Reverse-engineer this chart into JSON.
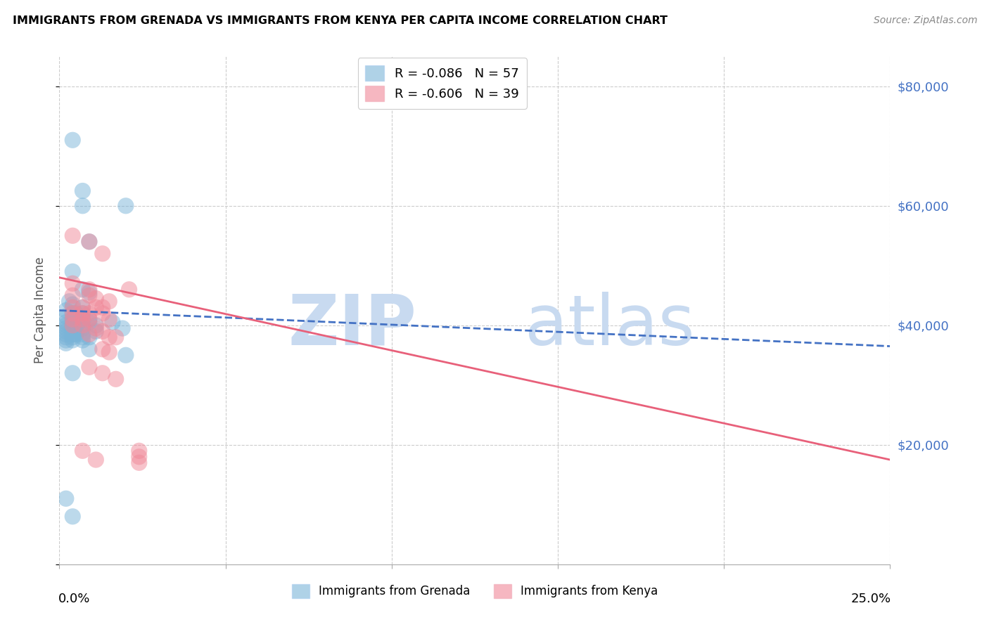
{
  "title": "IMMIGRANTS FROM GRENADA VS IMMIGRANTS FROM KENYA PER CAPITA INCOME CORRELATION CHART",
  "source": "Source: ZipAtlas.com",
  "ylabel": "Per Capita Income",
  "yticks": [
    0,
    20000,
    40000,
    60000,
    80000
  ],
  "xlim": [
    0.0,
    0.25
  ],
  "ylim": [
    0,
    85000
  ],
  "grenada_color": "#7ab4d8",
  "kenya_color": "#f08898",
  "grenada_scatter": [
    [
      0.004,
      71000
    ],
    [
      0.007,
      62500
    ],
    [
      0.007,
      60000
    ],
    [
      0.02,
      60000
    ],
    [
      0.009,
      54000
    ],
    [
      0.004,
      49000
    ],
    [
      0.007,
      46000
    ],
    [
      0.009,
      45500
    ],
    [
      0.003,
      44000
    ],
    [
      0.004,
      43500
    ],
    [
      0.007,
      43000
    ],
    [
      0.002,
      42500
    ],
    [
      0.004,
      42000
    ],
    [
      0.005,
      42000
    ],
    [
      0.007,
      42000
    ],
    [
      0.002,
      41500
    ],
    [
      0.004,
      41000
    ],
    [
      0.005,
      41000
    ],
    [
      0.007,
      41000
    ],
    [
      0.009,
      41000
    ],
    [
      0.002,
      40500
    ],
    [
      0.004,
      40500
    ],
    [
      0.009,
      40500
    ],
    [
      0.002,
      40000
    ],
    [
      0.004,
      40000
    ],
    [
      0.005,
      40000
    ],
    [
      0.007,
      40000
    ],
    [
      0.011,
      40000
    ],
    [
      0.002,
      39500
    ],
    [
      0.004,
      39500
    ],
    [
      0.005,
      39500
    ],
    [
      0.007,
      39500
    ],
    [
      0.002,
      39000
    ],
    [
      0.004,
      39000
    ],
    [
      0.005,
      39000
    ],
    [
      0.011,
      39000
    ],
    [
      0.002,
      38500
    ],
    [
      0.004,
      38500
    ],
    [
      0.005,
      38500
    ],
    [
      0.007,
      38500
    ],
    [
      0.002,
      38000
    ],
    [
      0.004,
      38000
    ],
    [
      0.007,
      38000
    ],
    [
      0.009,
      38000
    ],
    [
      0.002,
      37500
    ],
    [
      0.004,
      37500
    ],
    [
      0.007,
      37500
    ],
    [
      0.002,
      37000
    ],
    [
      0.009,
      36000
    ],
    [
      0.02,
      35000
    ],
    [
      0.004,
      32000
    ],
    [
      0.002,
      11000
    ],
    [
      0.004,
      8000
    ],
    [
      0.016,
      40500
    ],
    [
      0.019,
      39500
    ]
  ],
  "kenya_scatter": [
    [
      0.004,
      55000
    ],
    [
      0.009,
      54000
    ],
    [
      0.013,
      52000
    ],
    [
      0.004,
      47000
    ],
    [
      0.009,
      46000
    ],
    [
      0.004,
      45000
    ],
    [
      0.009,
      45000
    ],
    [
      0.011,
      44500
    ],
    [
      0.015,
      44000
    ],
    [
      0.004,
      43000
    ],
    [
      0.007,
      43000
    ],
    [
      0.011,
      43000
    ],
    [
      0.013,
      43000
    ],
    [
      0.004,
      42000
    ],
    [
      0.007,
      42000
    ],
    [
      0.009,
      42000
    ],
    [
      0.013,
      42000
    ],
    [
      0.004,
      41000
    ],
    [
      0.007,
      41000
    ],
    [
      0.009,
      41000
    ],
    [
      0.015,
      41000
    ],
    [
      0.004,
      40000
    ],
    [
      0.007,
      40000
    ],
    [
      0.011,
      39500
    ],
    [
      0.013,
      39000
    ],
    [
      0.009,
      38500
    ],
    [
      0.015,
      38000
    ],
    [
      0.017,
      38000
    ],
    [
      0.013,
      36000
    ],
    [
      0.015,
      35500
    ],
    [
      0.007,
      19000
    ],
    [
      0.011,
      17500
    ],
    [
      0.021,
      46000
    ],
    [
      0.009,
      33000
    ],
    [
      0.013,
      32000
    ],
    [
      0.017,
      31000
    ],
    [
      0.024,
      19000
    ],
    [
      0.024,
      18000
    ],
    [
      0.024,
      17000
    ]
  ],
  "grenada_line": {
    "x0": 0.0,
    "y0": 42500,
    "x1": 0.25,
    "y1": 36500
  },
  "kenya_line": {
    "x0": 0.0,
    "y0": 48000,
    "x1": 0.25,
    "y1": 17500
  },
  "grid_color": "#cccccc",
  "background_color": "#ffffff",
  "xtick_positions": [
    0.0,
    0.05,
    0.1,
    0.15,
    0.2,
    0.25
  ]
}
